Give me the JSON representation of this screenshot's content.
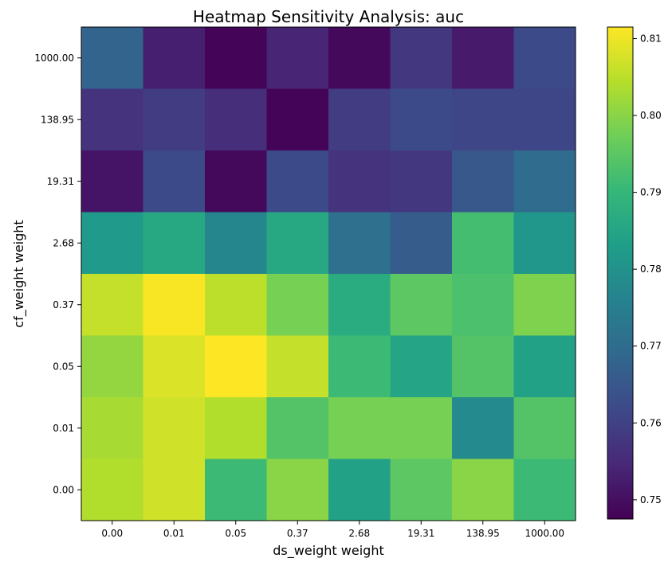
{
  "chart_data": {
    "type": "heatmap",
    "title": "Heatmap Sensitivity Analysis: auc",
    "xlabel": "ds_weight weight",
    "ylabel": "cf_weight weight",
    "x_categories": [
      "0.00",
      "0.01",
      "0.05",
      "0.37",
      "2.68",
      "19.31",
      "138.95",
      "1000.00"
    ],
    "y_categories": [
      "1000.00",
      "138.95",
      "19.31",
      "2.68",
      "0.37",
      "0.05",
      "0.01",
      "0.00"
    ],
    "values": [
      [
        0.768,
        0.753,
        0.748,
        0.754,
        0.749,
        0.758,
        0.752,
        0.762
      ],
      [
        0.757,
        0.759,
        0.756,
        0.748,
        0.759,
        0.762,
        0.761,
        0.761
      ],
      [
        0.751,
        0.762,
        0.749,
        0.762,
        0.757,
        0.758,
        0.765,
        0.77
      ],
      [
        0.782,
        0.786,
        0.777,
        0.786,
        0.771,
        0.766,
        0.792,
        0.781
      ],
      [
        0.806,
        0.811,
        0.805,
        0.798,
        0.787,
        0.795,
        0.793,
        0.799
      ],
      [
        0.801,
        0.808,
        0.812,
        0.806,
        0.791,
        0.785,
        0.794,
        0.784
      ],
      [
        0.803,
        0.807,
        0.804,
        0.794,
        0.798,
        0.798,
        0.778,
        0.794
      ],
      [
        0.804,
        0.807,
        0.791,
        0.8,
        0.784,
        0.795,
        0.8,
        0.791
      ]
    ],
    "colorbar": {
      "min": 0.7475,
      "max": 0.8115,
      "ticks": [
        "0.75",
        "0.76",
        "0.77",
        "0.78",
        "0.79",
        "0.80",
        "0.81"
      ],
      "tick_values": [
        0.75,
        0.76,
        0.77,
        0.78,
        0.79,
        0.8,
        0.81
      ],
      "colormap": "viridis"
    },
    "colormap_stops": [
      "#440154",
      "#482878",
      "#3e4989",
      "#31688e",
      "#26828e",
      "#1f9e89",
      "#35b779",
      "#6ece58",
      "#b5de2b",
      "#fde725"
    ]
  }
}
